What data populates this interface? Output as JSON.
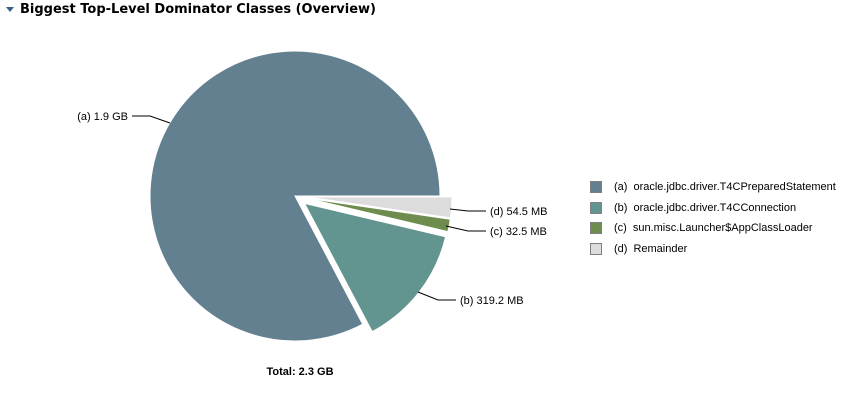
{
  "header": {
    "title": "Biggest Top-Level Dominator Classes (Overview)",
    "toggle_icon": "triangle-down-icon"
  },
  "chart_data": {
    "type": "pie",
    "title": "Biggest Top-Level Dominator Classes (Overview)",
    "total_label": "Total: 2.3 GB",
    "slices": [
      {
        "key": "(a)",
        "name": "oracle.jdbc.driver.T4CPreparedStatement",
        "value_label": "1.9 GB",
        "value_mb": 1945.6,
        "color": "#62808f",
        "exploded": false
      },
      {
        "key": "(b)",
        "name": "oracle.jdbc.driver.T4CConnection",
        "value_label": "319.2 MB",
        "value_mb": 319.2,
        "color": "#629490",
        "exploded": true
      },
      {
        "key": "(c)",
        "name": "sun.misc.Launcher$AppClassLoader",
        "value_label": "32.5 MB",
        "value_mb": 32.5,
        "color": "#6e8c4e",
        "exploded": false
      },
      {
        "key": "(d)",
        "name": "Remainder",
        "value_label": "54.5 MB",
        "value_mb": 54.5,
        "color": "#dcdcdc",
        "exploded": false
      }
    ],
    "legend_position": "right"
  }
}
